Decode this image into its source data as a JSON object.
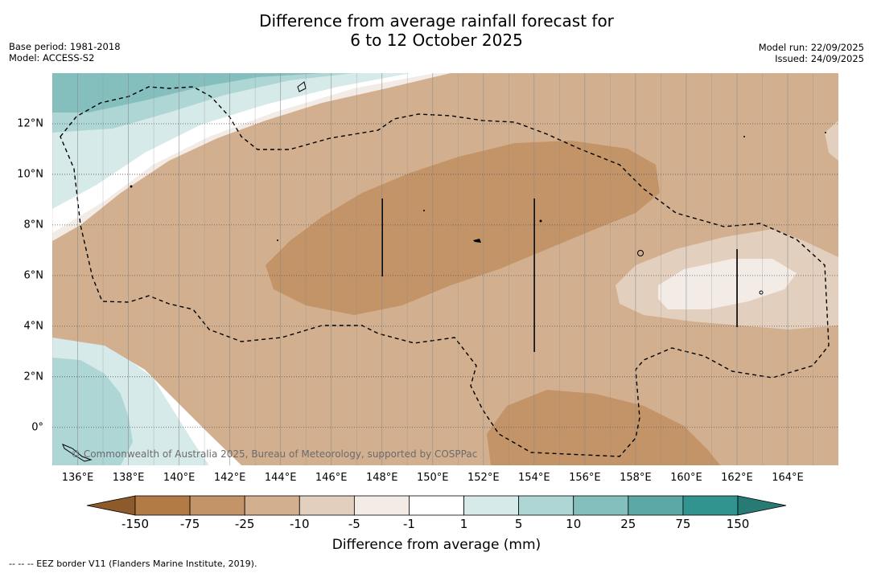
{
  "title_line1": "Difference from average rainfall forecast for",
  "title_line2": "6 to 12 October 2025",
  "base_period": "Base period: 1981-2018",
  "model": "Model: ACCESS-S2",
  "model_run": "Model run: 22/09/2025",
  "issued": "Issued: 24/09/2025",
  "copyright": "© Commonwealth of Australia 2025, Bureau of Meteorology, supported by COSPPac",
  "footer": "--  --  -- EEZ border V11 (Flanders Marine Institute, 2019).",
  "colorbar": {
    "title": "Difference from average (mm)",
    "labels": [
      "-150",
      "-75",
      "-25",
      "-10",
      "-5",
      "-1",
      "1",
      "5",
      "10",
      "25",
      "75",
      "150"
    ],
    "colors": [
      "#8c5a2b",
      "#b27a45",
      "#c29468",
      "#d2b08f",
      "#e3cfbd",
      "#f3ebe5",
      "#ffffff",
      "#d6eae9",
      "#add6d5",
      "#84bfbe",
      "#5ba8a7",
      "#32948f",
      "#287a75"
    ]
  },
  "map": {
    "lon_range": [
      135,
      166
    ],
    "lat_range": [
      -1.5,
      14
    ],
    "lon_ticks": [
      {
        "value": 136,
        "label": "136°E"
      },
      {
        "value": 138,
        "label": "138°E"
      },
      {
        "value": 140,
        "label": "140°E"
      },
      {
        "value": 142,
        "label": "142°E"
      },
      {
        "value": 144,
        "label": "144°E"
      },
      {
        "value": 146,
        "label": "146°E"
      },
      {
        "value": 148,
        "label": "148°E"
      },
      {
        "value": 150,
        "label": "150°E"
      },
      {
        "value": 152,
        "label": "152°E"
      },
      {
        "value": 154,
        "label": "154°E"
      },
      {
        "value": 156,
        "label": "156°E"
      },
      {
        "value": 158,
        "label": "158°E"
      },
      {
        "value": 160,
        "label": "160°E"
      },
      {
        "value": 162,
        "label": "162°E"
      },
      {
        "value": 164,
        "label": "164°E"
      }
    ],
    "lat_ticks": [
      {
        "value": 0,
        "label": "0°"
      },
      {
        "value": 2,
        "label": "2°N"
      },
      {
        "value": 4,
        "label": "4°N"
      },
      {
        "value": 6,
        "label": "6°N"
      },
      {
        "value": 8,
        "label": "8°N"
      },
      {
        "value": 10,
        "label": "10°N"
      },
      {
        "value": 12,
        "label": "12°N"
      }
    ]
  }
}
